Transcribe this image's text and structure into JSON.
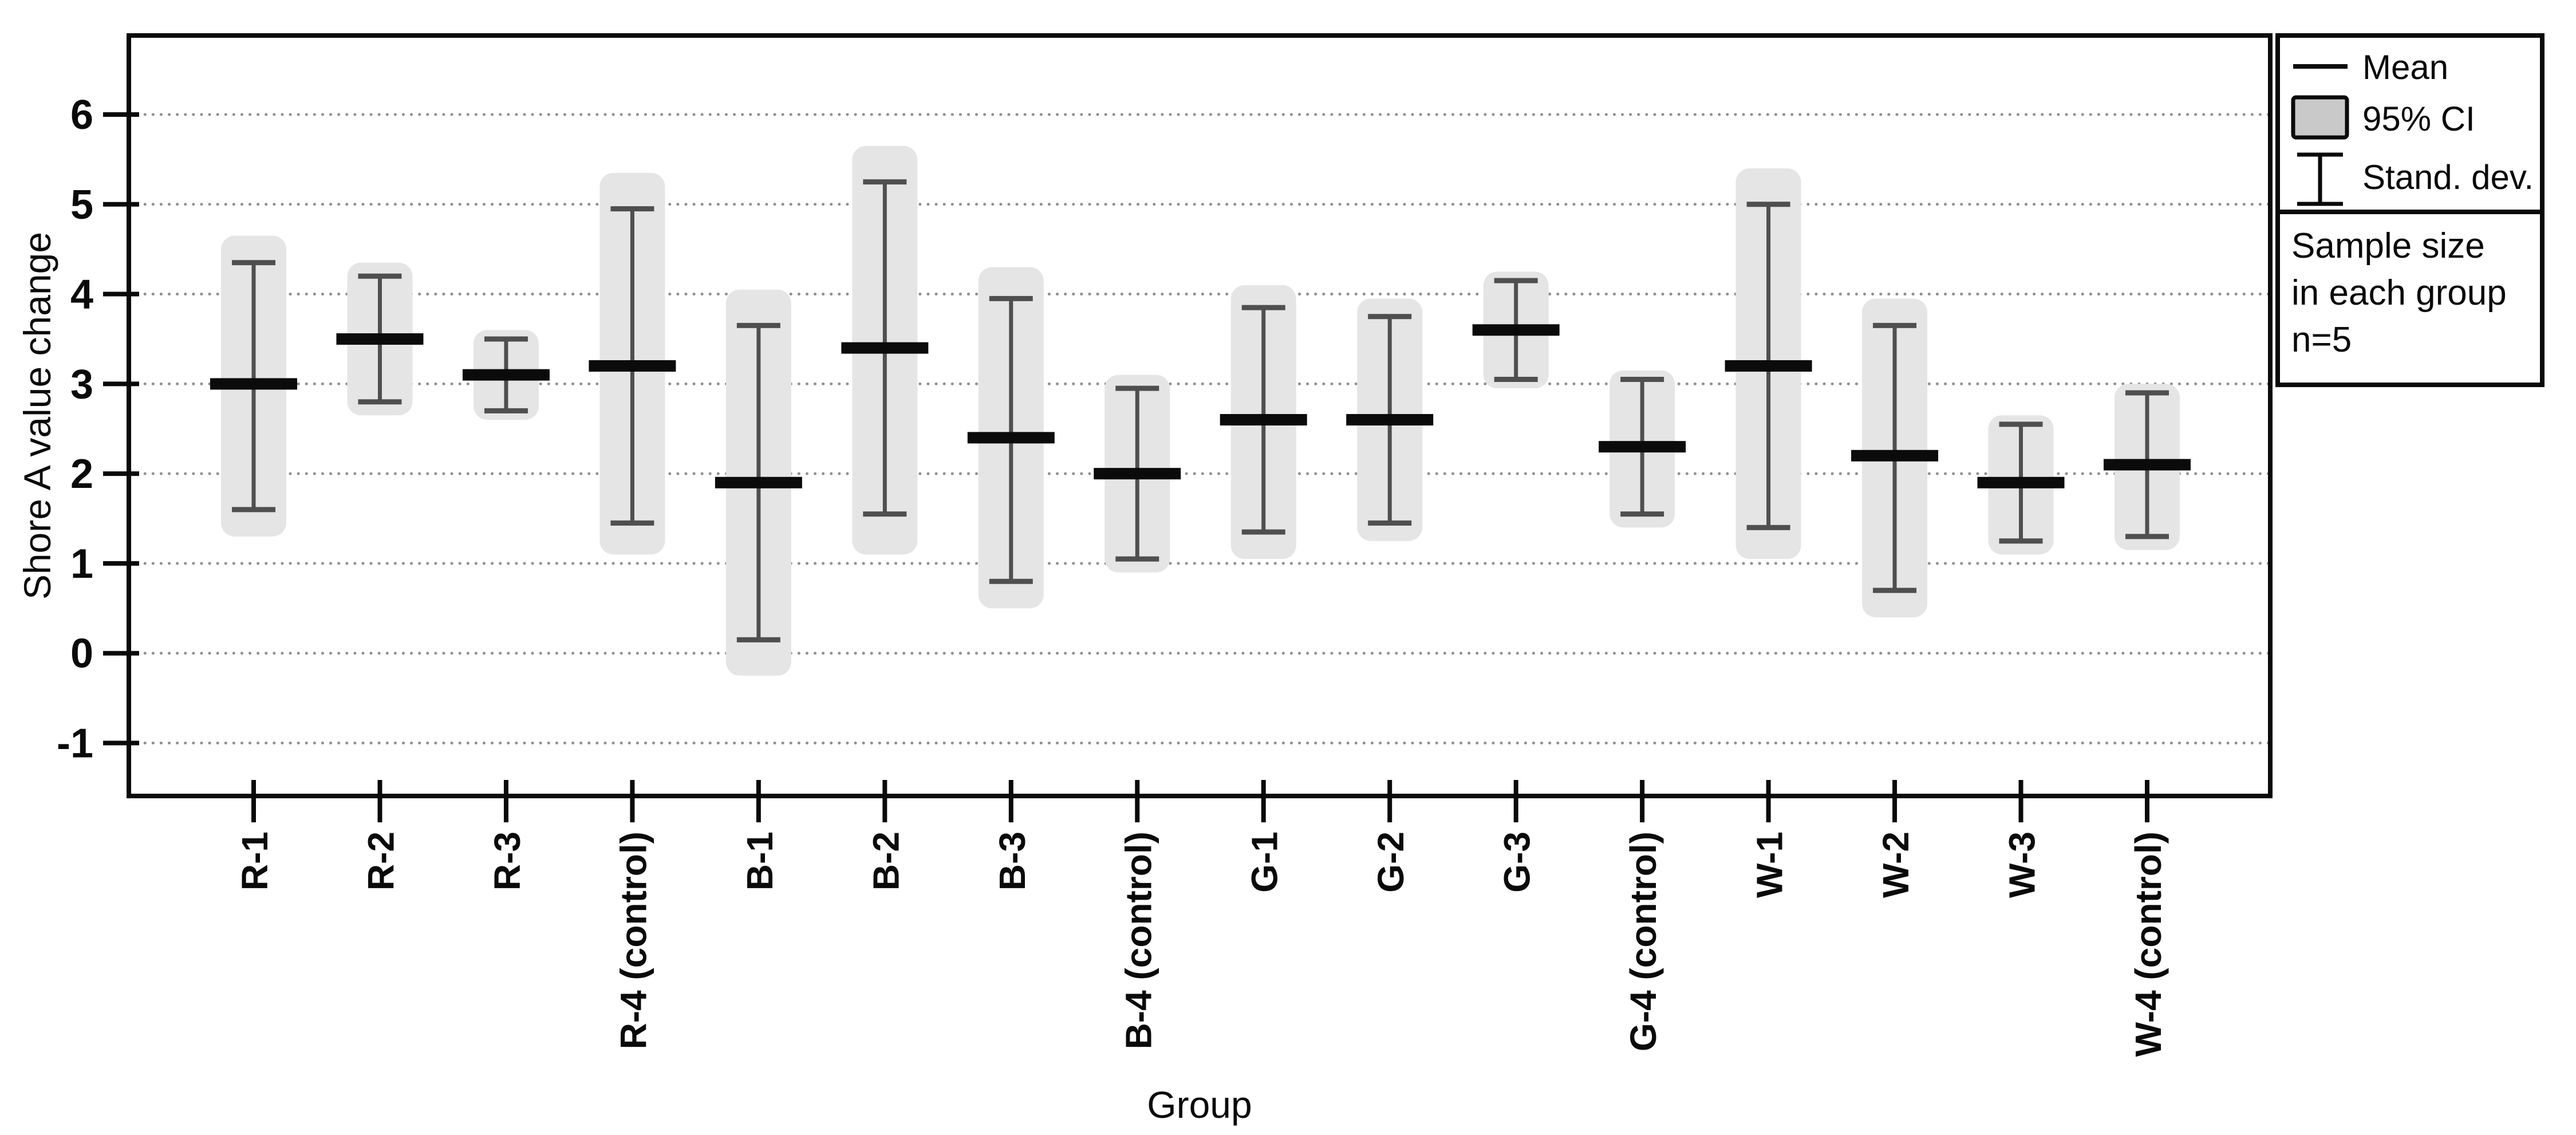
{
  "axes": {
    "y_label": "Shore A value change",
    "x_label": "Group",
    "y_ticks": [
      6,
      5,
      4,
      3,
      2,
      1,
      0,
      -1
    ]
  },
  "legend": {
    "items": [
      {
        "icon": "mean-line-icon",
        "label": "Mean"
      },
      {
        "icon": "ci-box-icon",
        "label": "95% CI"
      },
      {
        "icon": "stddev-ibeam-icon",
        "label": "Stand. dev."
      }
    ],
    "note_lines": [
      "Sample size",
      "in each group",
      "n=5"
    ]
  },
  "chart_data": {
    "type": "error-bar",
    "title": "",
    "xlabel": "Group",
    "ylabel": "Shore A value change",
    "ylim": [
      -1.59,
      6.88
    ],
    "yticks": [
      6,
      5,
      4,
      3,
      2,
      1,
      0,
      -1
    ],
    "grid": "dotted-horizontal",
    "legend_position": "outside-top-right",
    "sample_size_per_group": 5,
    "categories": [
      "R-1",
      "R-2",
      "R-3",
      "R-4 (control)",
      "B-1",
      "B-2",
      "B-3",
      "B-4 (control)",
      "G-1",
      "G-2",
      "G-3",
      "G-4 (control)",
      "W-1",
      "W-2",
      "W-3",
      "W-4 (control)"
    ],
    "series": [
      {
        "name": "Mean",
        "values": [
          3.0,
          3.5,
          3.1,
          3.2,
          1.9,
          3.4,
          2.4,
          2.0,
          2.6,
          2.6,
          3.6,
          2.3,
          3.2,
          2.2,
          1.9,
          2.1
        ]
      },
      {
        "name": "SD low",
        "values": [
          1.6,
          2.8,
          2.7,
          1.45,
          0.15,
          1.55,
          0.8,
          1.05,
          1.35,
          1.45,
          3.05,
          1.55,
          1.4,
          0.7,
          1.25,
          1.3
        ]
      },
      {
        "name": "SD high",
        "values": [
          4.35,
          4.2,
          3.5,
          4.95,
          3.65,
          5.25,
          3.95,
          2.95,
          3.85,
          3.75,
          4.15,
          3.05,
          5.0,
          3.65,
          2.55,
          2.9
        ]
      },
      {
        "name": "CI low",
        "values": [
          1.3,
          2.65,
          2.6,
          1.1,
          -0.25,
          1.1,
          0.5,
          0.9,
          1.05,
          1.25,
          2.95,
          1.4,
          1.05,
          0.4,
          1.1,
          1.15
        ]
      },
      {
        "name": "CI high",
        "values": [
          4.65,
          4.35,
          3.6,
          5.35,
          4.05,
          5.65,
          4.3,
          3.1,
          4.1,
          3.95,
          4.25,
          3.15,
          5.4,
          3.95,
          2.65,
          3.0
        ]
      }
    ]
  },
  "colors": {
    "background": "#ffffff",
    "axis": "#0a0a0a",
    "grid": "#909090",
    "ci_box": "#e5e5e5",
    "ci_box_legend": "#c9c9c9",
    "sd_whisker": "#4f4f4f",
    "mean_bar": "#0b0b0b"
  }
}
